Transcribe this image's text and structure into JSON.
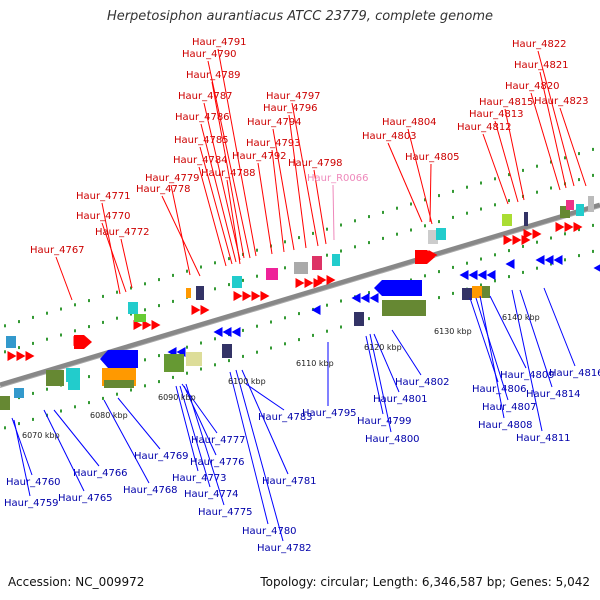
{
  "title": "Herpetosiphon aurantiacus ATCC 23779, complete genome",
  "footer": {
    "accession": "Accession: NC_009972",
    "info": "Topology: circular; Length: 6,346,587 bp; Genes: 5,042"
  },
  "colors": {
    "forward_label": "#cc0000",
    "reverse_label": "#0000aa",
    "rna_label": "#ee88bb",
    "forward_arrow": "#ff0000",
    "reverse_arrow": "#0000ff",
    "backbone": "#888888"
  },
  "ticks": [
    "6070 kbp",
    "6080 kbp",
    "6090 kbp",
    "6100 kbp",
    "6110 kbp",
    "6120 kbp",
    "6130 kbp",
    "6140 kbp"
  ],
  "forward_genes": [
    "Haur_4767",
    "Haur_4771",
    "Haur_4770",
    "Haur_4772",
    "Haur_4779",
    "Haur_4778",
    "Haur_4784",
    "Haur_4788",
    "Haur_4785",
    "Haur_4786",
    "Haur_4787",
    "Haur_4789",
    "Haur_4790",
    "Haur_4791",
    "Haur_4792",
    "Haur_4793",
    "Haur_4794",
    "Haur_4796",
    "Haur_4797",
    "Haur_4798",
    "Haur_4804",
    "Haur_4803",
    "Haur_4805",
    "Haur_4812",
    "Haur_4813",
    "Haur_4815",
    "Haur_4820",
    "Haur_4821",
    "Haur_4822",
    "Haur_4823"
  ],
  "rna_genes": [
    "Haur_R0066"
  ],
  "reverse_genes": [
    "Haur_4760",
    "Haur_4759",
    "Haur_4766",
    "Haur_4765",
    "Haur_4768",
    "Haur_4769",
    "Haur_4773",
    "Haur_4774",
    "Haur_4775",
    "Haur_4776",
    "Haur_4777",
    "Haur_4780",
    "Haur_4781",
    "Haur_4782",
    "Haur_4783",
    "Haur_4795",
    "Haur_4799",
    "Haur_4800",
    "Haur_4801",
    "Haur_4802",
    "Haur_4806",
    "Haur_4807",
    "Haur_4808",
    "Haur_4809",
    "Haur_4811",
    "Haur_4814",
    "Haur_4816"
  ]
}
